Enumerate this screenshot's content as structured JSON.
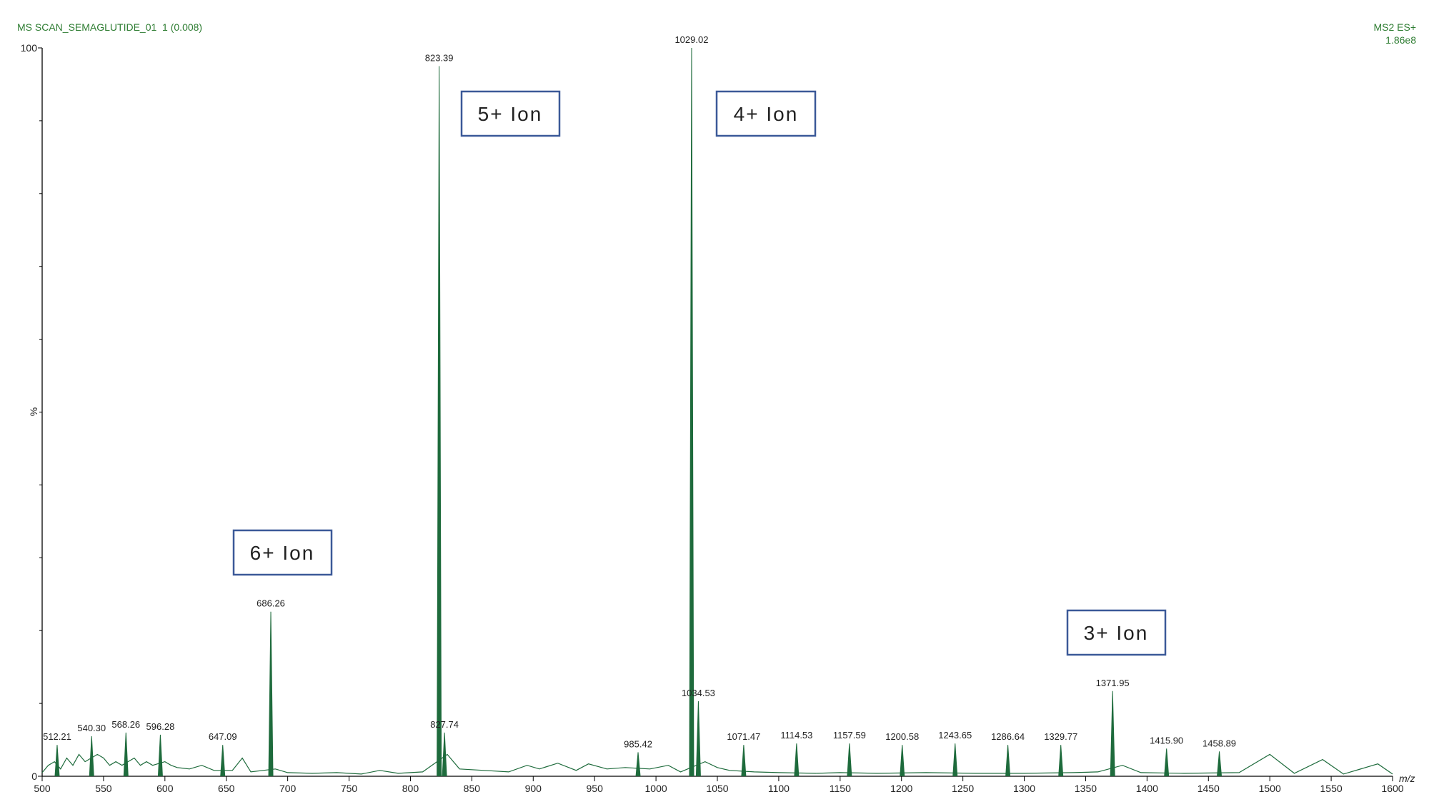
{
  "chart_data": {
    "type": "spectrum",
    "title": "MS SCAN_SEMAGLUTIDE_01  1 (0.008)",
    "scan_type": "MS2 ES+",
    "max_intensity": "1.86e8",
    "x_label": "m/z",
    "y_label": "%",
    "color": "#1e6b3c",
    "xlim": [
      500,
      1600
    ],
    "xticks": [
      500,
      550,
      600,
      650,
      700,
      750,
      800,
      850,
      900,
      950,
      1000,
      1050,
      1100,
      1150,
      1200,
      1250,
      1300,
      1350,
      1400,
      1450,
      1500,
      1550,
      1600
    ],
    "ylim": [
      0,
      100
    ],
    "yticks": [
      0,
      100
    ],
    "yminorticks": [
      10,
      20,
      30,
      40,
      50,
      60,
      70,
      80,
      90
    ],
    "trace": {
      "x": [
        500,
        505,
        510,
        515,
        520,
        525,
        530,
        535,
        545,
        550,
        555,
        560,
        565,
        575,
        580,
        585,
        590,
        600,
        605,
        610,
        620,
        630,
        640,
        655,
        663,
        670,
        680,
        690,
        700,
        720,
        740,
        760,
        775,
        790,
        810,
        830,
        840,
        860,
        880,
        895,
        905,
        920,
        935,
        945,
        960,
        975,
        995,
        1010,
        1020,
        1040,
        1050,
        1060,
        1080,
        1100,
        1130,
        1150,
        1180,
        1220,
        1260,
        1300,
        1340,
        1360,
        1380,
        1395,
        1430,
        1475,
        1500,
        1520,
        1543,
        1560,
        1588,
        1600
      ],
      "values": [
        0.5,
        1.5,
        2,
        1,
        2.5,
        1.5,
        3,
        2,
        3,
        2.5,
        1.5,
        2,
        1.5,
        2.5,
        1.5,
        2,
        1.5,
        2,
        1.5,
        1.2,
        1,
        1.5,
        0.8,
        0.8,
        2.5,
        0.6,
        0.8,
        1,
        0.5,
        0.4,
        0.5,
        0.3,
        0.8,
        0.4,
        0.6,
        3,
        1,
        0.8,
        0.6,
        1.5,
        1,
        1.8,
        0.8,
        1.7,
        1,
        1.2,
        1,
        1.5,
        0.6,
        2,
        1.2,
        0.8,
        0.6,
        0.5,
        0.4,
        0.5,
        0.4,
        0.5,
        0.4,
        0.4,
        0.5,
        0.6,
        1.5,
        0.5,
        0.4,
        0.5,
        3,
        0.4,
        2.3,
        0.3,
        1.7,
        0.3
      ]
    },
    "peaks": [
      {
        "x": 512.21,
        "y": 4.3,
        "label": "512.21"
      },
      {
        "x": 540.3,
        "y": 5.5,
        "label": "540.30"
      },
      {
        "x": 568.26,
        "y": 6,
        "label": "568.26"
      },
      {
        "x": 596.28,
        "y": 5.7,
        "label": "596.28"
      },
      {
        "x": 647.09,
        "y": 4.3,
        "label": "647.09"
      },
      {
        "x": 686.26,
        "y": 22.6,
        "label": "686.26"
      },
      {
        "x": 823.39,
        "y": 97.5,
        "label": "823.39"
      },
      {
        "x": 827.74,
        "y": 6,
        "label": "827.74"
      },
      {
        "x": 985.42,
        "y": 3.3,
        "label": "985.42"
      },
      {
        "x": 1029.02,
        "y": 100,
        "label": "1029.02"
      },
      {
        "x": 1034.53,
        "y": 10.3,
        "label": "1034.53"
      },
      {
        "x": 1071.47,
        "y": 4.3,
        "label": "1071.47"
      },
      {
        "x": 1114.53,
        "y": 4.5,
        "label": "1114.53"
      },
      {
        "x": 1157.59,
        "y": 4.5,
        "label": "1157.59"
      },
      {
        "x": 1200.58,
        "y": 4.3,
        "label": "1200.58"
      },
      {
        "x": 1243.65,
        "y": 4.5,
        "label": "1243.65"
      },
      {
        "x": 1286.64,
        "y": 4.3,
        "label": "1286.64"
      },
      {
        "x": 1329.77,
        "y": 4.3,
        "label": "1329.77"
      },
      {
        "x": 1371.95,
        "y": 11.7,
        "label": "1371.95"
      },
      {
        "x": 1415.9,
        "y": 3.8,
        "label": "1415.90"
      },
      {
        "x": 1458.89,
        "y": 3.4,
        "label": "1458.89"
      }
    ],
    "annotations": [
      "5+ Ion",
      "4+ Ion",
      "6+ Ion",
      "3+ Ion"
    ]
  }
}
